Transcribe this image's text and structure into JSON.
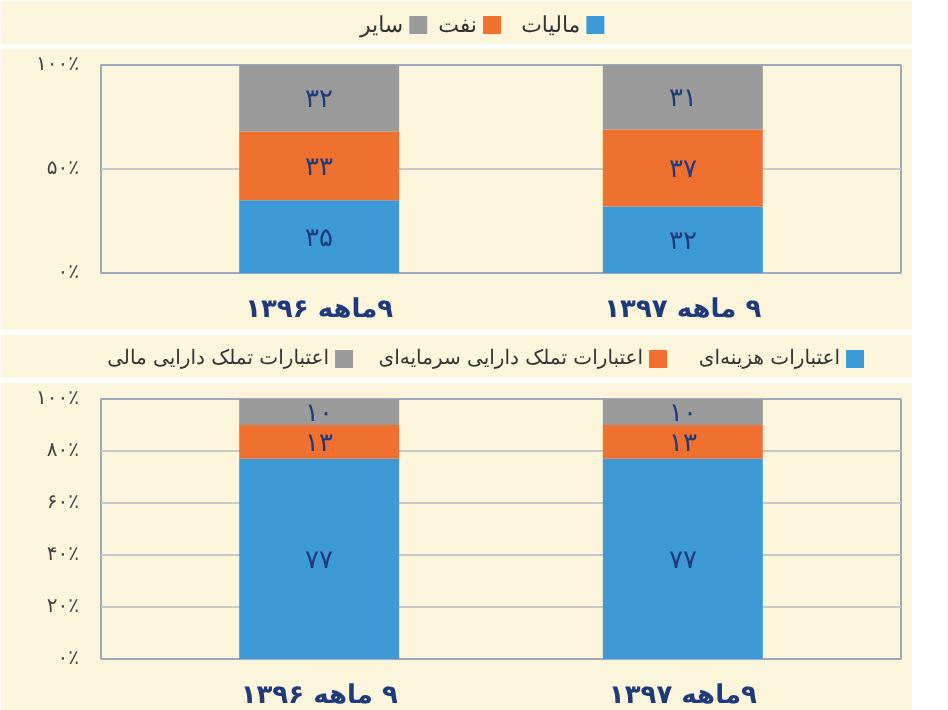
{
  "chart_data": [
    {
      "type": "bar",
      "stacked": true,
      "categories": [
        "۹ماهه ۱۳۹۶",
        "۹ ماهه ۱۳۹۷"
      ],
      "ylim": [
        0,
        100
      ],
      "yticks": [
        {
          "value": 0,
          "label": "۰٪"
        },
        {
          "value": 50,
          "label": "۵۰٪"
        },
        {
          "value": 100,
          "label": "۱۰۰٪"
        }
      ],
      "grid": "y",
      "legend": "top",
      "series": [
        {
          "name": "مالیات",
          "color": "#3d9ad6",
          "values": [
            35,
            32
          ],
          "value_labels": [
            "۳۵",
            "۳۲"
          ]
        },
        {
          "name": "نفت",
          "color": "#f07030",
          "values": [
            33,
            37
          ],
          "value_labels": [
            "۳۳",
            "۳۷"
          ]
        },
        {
          "name": "سایر",
          "color": "#9a9a9a",
          "values": [
            32,
            31
          ],
          "value_labels": [
            "۳۲",
            "۳۱"
          ]
        }
      ]
    },
    {
      "type": "bar",
      "stacked": true,
      "categories": [
        "۹ ماهه ۱۳۹۶",
        "۹ماهه ۱۳۹۷"
      ],
      "ylim": [
        0,
        100
      ],
      "yticks": [
        {
          "value": 0,
          "label": "۰٪"
        },
        {
          "value": 20,
          "label": "۲۰٪"
        },
        {
          "value": 40,
          "label": "۴۰٪"
        },
        {
          "value": 60,
          "label": "۶۰٪"
        },
        {
          "value": 80,
          "label": "۸۰٪"
        },
        {
          "value": 100,
          "label": "۱۰۰٪"
        }
      ],
      "grid": "y",
      "legend": "top",
      "series": [
        {
          "name": "اعتبارات هزینه‌ای",
          "color": "#3d9ad6",
          "values": [
            77,
            77
          ],
          "value_labels": [
            "۷۷",
            "۷۷"
          ]
        },
        {
          "name": "اعتبارات تملک دارایی سرمایه‌ای",
          "color": "#f07030",
          "values": [
            13,
            13
          ],
          "value_labels": [
            "۱۳",
            "۱۳"
          ]
        },
        {
          "name": "اعتبارات تملک دارایی مالی",
          "color": "#9a9a9a",
          "values": [
            10,
            10
          ],
          "value_labels": [
            "۱۰",
            "۱۰"
          ]
        }
      ]
    }
  ]
}
